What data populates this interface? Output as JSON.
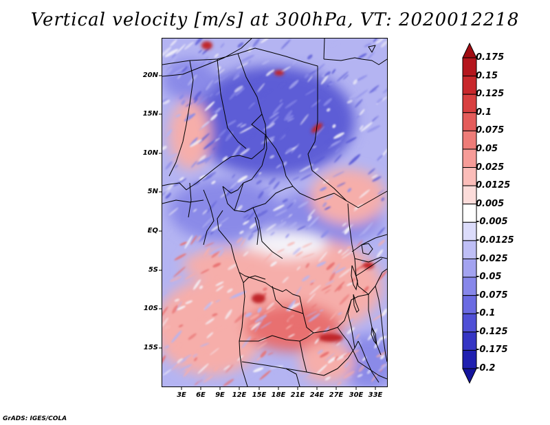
{
  "title": "Vertical velocity [m/s] at 300hPa, VT: 2020012218",
  "credit": "GrADS: IGES/COLA",
  "lat_labels": [
    "20N",
    "15N",
    "10N",
    "5N",
    "EQ",
    "5S",
    "10S",
    "15S"
  ],
  "lon_labels": [
    "3E",
    "6E",
    "9E",
    "12E",
    "15E",
    "18E",
    "21E",
    "24E",
    "27E",
    "30E",
    "33E"
  ],
  "colorbar": {
    "levels": [
      "0.175",
      "0.15",
      "0.125",
      "0.1",
      "0.075",
      "0.05",
      "0.025",
      "0.0125",
      "0.005",
      "-0.005",
      "-0.0125",
      "-0.025",
      "-0.05",
      "-0.075",
      "-0.1",
      "-0.125",
      "-0.175",
      "-0.2"
    ],
    "colors": [
      "#a00c12",
      "#b4161d",
      "#c8282c",
      "#d84040",
      "#e45c5a",
      "#ee7c78",
      "#f69c98",
      "#fbbdb9",
      "#fcdcda",
      "#ffffff",
      "#dcdcfb",
      "#bfbff6",
      "#a3a3f0",
      "#8787ea",
      "#6b6be2",
      "#5050d6",
      "#3535c4",
      "#2020b0",
      "#14149c"
    ]
  },
  "map_colors": {
    "strong_red": "#c0262b",
    "red": "#e87070",
    "light_red": "#f6aeaa",
    "white": "#f4f2f8",
    "light_blue": "#b4b4f2",
    "blue": "#8a8ae8",
    "deep_blue": "#5d5dd6"
  }
}
